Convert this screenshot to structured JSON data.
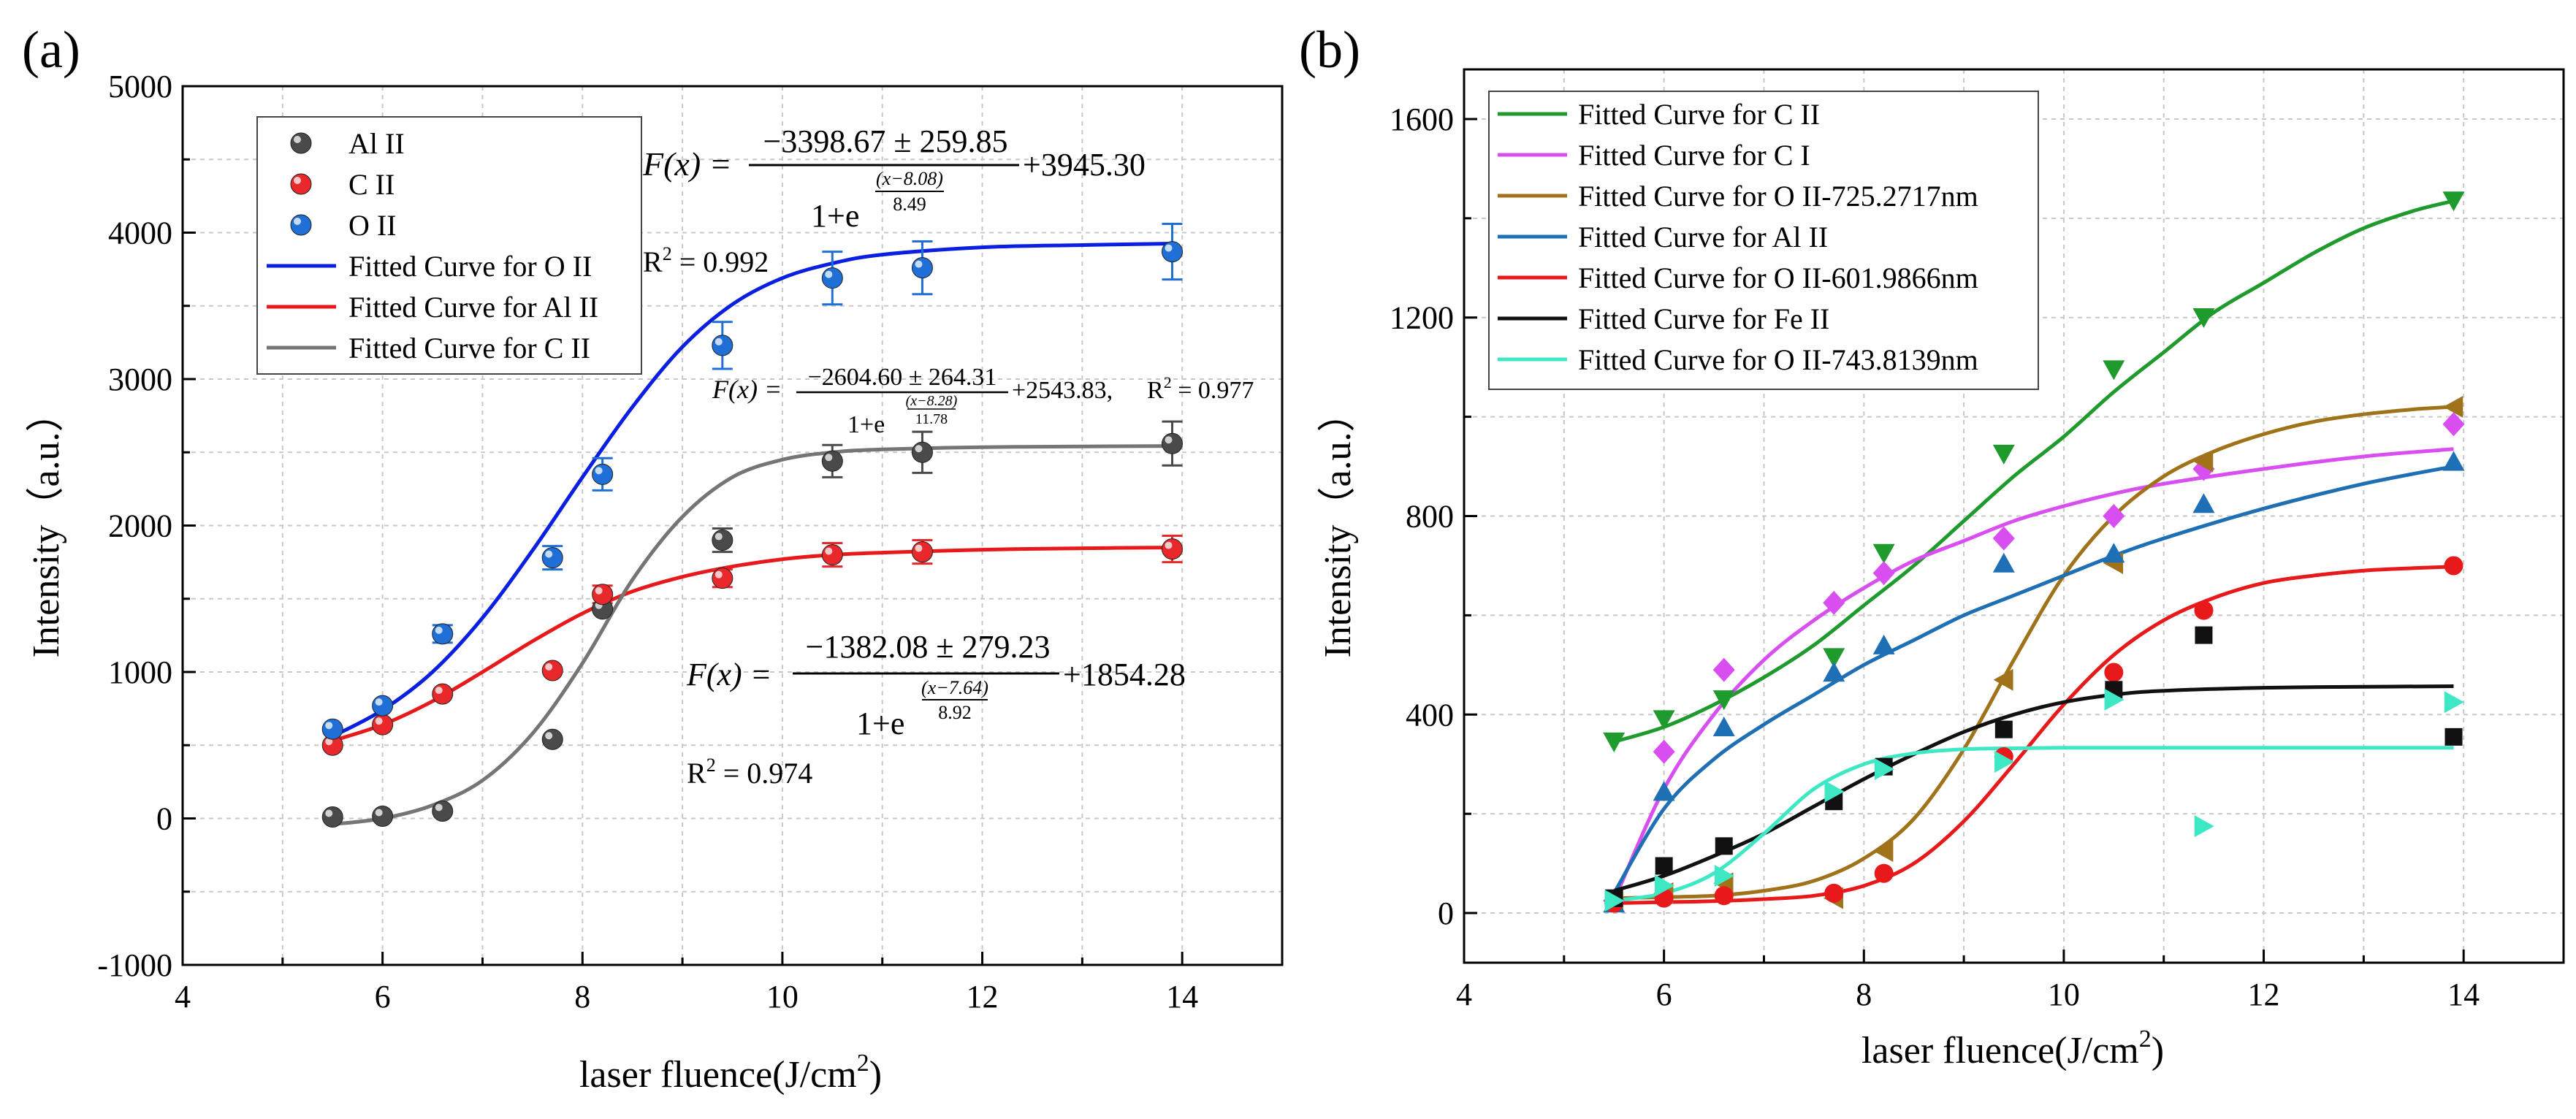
{
  "chart_data": [
    {
      "panel_label": "(a)",
      "type": "scatter",
      "xlabel": "laser fluence(J/cm",
      "xlabel_sup": "2",
      "xlabel_close": ")",
      "ylabel": "Intensity（a.u.）",
      "xlim": [
        4,
        15
      ],
      "ylim": [
        -1000,
        5000
      ],
      "x_ticks": [
        4,
        6,
        8,
        10,
        12,
        14
      ],
      "y_ticks": [
        -1000,
        0,
        1000,
        2000,
        3000,
        4000,
        5000
      ],
      "grid": true,
      "legend_position": "top-left",
      "series": [
        {
          "name": "Al II",
          "kind": "points",
          "color": "#4a4a4a",
          "marker": "sphere",
          "x": [
            5.5,
            6.0,
            6.6,
            7.7,
            8.2,
            9.4,
            10.5,
            11.4,
            13.9
          ],
          "y": [
            10,
            15,
            50,
            540,
            1430,
            1900,
            2440,
            2500,
            2560
          ],
          "err": [
            0,
            0,
            0,
            0,
            0,
            80,
            110,
            140,
            150
          ]
        },
        {
          "name": "C  II",
          "kind": "points",
          "color": "#e8282a",
          "marker": "sphere",
          "x": [
            5.5,
            6.0,
            6.6,
            7.7,
            8.2,
            9.4,
            10.5,
            11.4,
            13.9
          ],
          "y": [
            500,
            640,
            850,
            1010,
            1530,
            1640,
            1800,
            1820,
            1840
          ],
          "err": [
            0,
            0,
            0,
            0,
            60,
            60,
            80,
            80,
            90
          ]
        },
        {
          "name": "O II",
          "kind": "points",
          "color": "#1f6fd6",
          "marker": "sphere",
          "x": [
            5.5,
            6.0,
            6.6,
            7.7,
            8.2,
            9.4,
            10.5,
            11.4,
            13.9
          ],
          "y": [
            610,
            770,
            1260,
            1780,
            2350,
            3230,
            3690,
            3760,
            3870
          ],
          "err": [
            0,
            0,
            60,
            80,
            110,
            160,
            180,
            180,
            190
          ]
        },
        {
          "name": "Fitted Curve for O II",
          "kind": "fit",
          "color": "#0a1fe0",
          "x": [
            5.5,
            6.0,
            6.5,
            7.0,
            7.5,
            8.0,
            8.5,
            9.0,
            9.5,
            10.0,
            10.5,
            11.0,
            12.0,
            13.0,
            13.9
          ],
          "y": [
            560,
            740,
            1000,
            1370,
            1830,
            2330,
            2810,
            3220,
            3510,
            3690,
            3790,
            3850,
            3900,
            3915,
            3925
          ]
        },
        {
          "name": "Fitted Curve for Al II",
          "kind": "fit",
          "color": "#e8191b",
          "x": [
            5.5,
            6.0,
            6.5,
            7.0,
            7.5,
            8.0,
            8.5,
            9.0,
            9.5,
            10.0,
            10.5,
            11.0,
            12.0,
            13.0,
            13.9
          ],
          "y": [
            530,
            640,
            800,
            1000,
            1210,
            1400,
            1550,
            1650,
            1720,
            1770,
            1800,
            1815,
            1835,
            1845,
            1850
          ]
        },
        {
          "name": "Fitted Curve for C II",
          "kind": "fit",
          "color": "#757575",
          "x": [
            5.5,
            6.0,
            6.5,
            7.0,
            7.5,
            8.0,
            8.5,
            9.0,
            9.5,
            10.0,
            10.5,
            11.0,
            12.0,
            13.0,
            13.9
          ],
          "y": [
            -40,
            0,
            90,
            260,
            580,
            1060,
            1630,
            2060,
            2330,
            2450,
            2500,
            2520,
            2535,
            2540,
            2543
          ]
        }
      ],
      "annotations": [
        {
          "id": "eq1",
          "prefix": "F(x) =",
          "numerator": "−3398.67 ± 259.85",
          "denominator": "1+e",
          "exponent_top": "(x−8.08)",
          "exponent_bottom": "8.49",
          "suffix": "+3945.30"
        },
        {
          "id": "r2_1",
          "text": "R",
          "sup": "2",
          "rest": " = 0.992"
        },
        {
          "id": "eq2",
          "prefix": "F(x) =",
          "numerator": "−2604.60 ± 264.31",
          "denominator": "1+e",
          "exponent_top": "(x−8.28)",
          "exponent_bottom": "11.78",
          "suffix": "+2543.83,",
          "r2_prefix": "R",
          "r2_sup": "2",
          "r2_rest": " = 0.977"
        },
        {
          "id": "eq3",
          "prefix": "F(x) =",
          "numerator": "−1382.08 ± 279.23",
          "denominator": "1+e",
          "exponent_top": "(x−7.64)",
          "exponent_bottom": "8.92",
          "suffix": "+1854.28"
        },
        {
          "id": "r2_3",
          "text": "R",
          "sup": "2",
          "rest": " = 0.974"
        }
      ]
    },
    {
      "panel_label": "(b)",
      "type": "scatter",
      "xlabel": "laser fluence(J/cm",
      "xlabel_sup": "2",
      "xlabel_close": ")",
      "ylabel": "Intensity（a.u.）",
      "xlim": [
        4,
        15
      ],
      "ylim": [
        -100,
        1700
      ],
      "x_ticks": [
        4,
        6,
        8,
        10,
        12,
        14
      ],
      "y_ticks": [
        0,
        400,
        800,
        1200,
        1600
      ],
      "grid": true,
      "legend_position": "top-left",
      "series": [
        {
          "name": "Fitted Curve for C II",
          "color": "#1f9a2c",
          "marker": "triangle-down",
          "x": [
            5.5,
            6.0,
            6.6,
            7.7,
            8.2,
            9.4,
            10.5,
            11.4,
            13.9
          ],
          "y": [
            345,
            390,
            430,
            515,
            725,
            925,
            1095,
            1200,
            1435
          ],
          "fit_x": [
            5.5,
            6.0,
            6.5,
            7.0,
            7.5,
            8.0,
            8.5,
            9.0,
            9.5,
            10.0,
            10.5,
            11.0,
            11.5,
            12.0,
            12.5,
            13.0,
            13.5,
            13.9
          ],
          "fit_y": [
            345,
            375,
            420,
            475,
            540,
            620,
            700,
            790,
            880,
            960,
            1050,
            1130,
            1210,
            1270,
            1330,
            1380,
            1415,
            1435
          ]
        },
        {
          "name": "Fitted Curve for C I",
          "color": "#d84ef0",
          "marker": "diamond",
          "x": [
            5.5,
            6.0,
            6.6,
            7.7,
            8.2,
            9.4,
            10.5,
            11.4,
            13.9
          ],
          "y": [
            25,
            325,
            490,
            625,
            685,
            755,
            800,
            895,
            985
          ],
          "fit_x": [
            5.5,
            6.0,
            6.5,
            7.0,
            7.5,
            8.0,
            8.5,
            9.0,
            9.5,
            10.0,
            10.5,
            11.0,
            12.0,
            13.0,
            13.9
          ],
          "fit_y": [
            25,
            250,
            400,
            510,
            590,
            655,
            710,
            750,
            790,
            820,
            845,
            865,
            895,
            920,
            935
          ]
        },
        {
          "name": "Fitted Curve for O II-725.2717nm",
          "color": "#a0721a",
          "marker": "triangle-left",
          "x": [
            5.5,
            6.0,
            6.6,
            7.7,
            8.2,
            9.4,
            10.5,
            11.4,
            13.9
          ],
          "y": [
            25,
            40,
            60,
            30,
            125,
            470,
            705,
            910,
            1020
          ],
          "fit_x": [
            5.5,
            6.0,
            6.5,
            7.0,
            7.5,
            8.0,
            8.5,
            9.0,
            9.5,
            10.0,
            10.5,
            11.0,
            11.5,
            12.0,
            12.5,
            13.0,
            13.5,
            13.9
          ],
          "fit_y": [
            30,
            32,
            35,
            45,
            65,
            110,
            190,
            330,
            510,
            680,
            800,
            880,
            930,
            965,
            990,
            1005,
            1015,
            1020
          ]
        },
        {
          "name": "Fitted Curve for Al II",
          "color": "#1f6fb4",
          "marker": "triangle-up",
          "x": [
            5.5,
            6.0,
            6.6,
            7.7,
            8.2,
            9.4,
            10.5,
            11.4,
            13.9
          ],
          "y": [
            20,
            245,
            375,
            485,
            540,
            705,
            725,
            825,
            910
          ],
          "fit_x": [
            5.5,
            6.0,
            6.5,
            7.0,
            7.5,
            8.0,
            8.5,
            9.0,
            9.5,
            10.0,
            10.5,
            11.0,
            12.0,
            13.0,
            13.9
          ],
          "fit_y": [
            40,
            210,
            310,
            380,
            440,
            500,
            550,
            600,
            640,
            680,
            720,
            755,
            815,
            865,
            900
          ]
        },
        {
          "name": "Fitted Curve for O II-601.9866nm",
          "color": "#e8191b",
          "marker": "circle",
          "x": [
            5.5,
            6.0,
            6.6,
            7.7,
            8.2,
            9.4,
            10.5,
            11.4,
            13.9
          ],
          "y": [
            20,
            30,
            35,
            40,
            80,
            315,
            485,
            610,
            700
          ],
          "fit_x": [
            5.5,
            6.0,
            6.5,
            7.0,
            7.5,
            8.0,
            8.5,
            9.0,
            9.5,
            10.0,
            10.5,
            11.0,
            11.5,
            12.0,
            12.5,
            13.0,
            13.5,
            13.9
          ],
          "fit_y": [
            20,
            22,
            24,
            28,
            35,
            55,
            100,
            185,
            300,
            420,
            520,
            590,
            635,
            665,
            680,
            690,
            695,
            698
          ]
        },
        {
          "name": "Fitted Curve for Fe II",
          "color": "#111111",
          "marker": "square",
          "x": [
            5.5,
            6.0,
            6.6,
            7.7,
            8.2,
            9.4,
            10.5,
            11.4,
            13.9
          ],
          "y": [
            30,
            95,
            135,
            225,
            295,
            370,
            450,
            560,
            355
          ],
          "fit_x": [
            5.5,
            6.0,
            6.5,
            7.0,
            7.5,
            8.0,
            8.5,
            9.0,
            9.5,
            10.0,
            10.5,
            11.0,
            12.0,
            13.0,
            13.9
          ],
          "fit_y": [
            45,
            75,
            115,
            160,
            215,
            270,
            320,
            365,
            400,
            425,
            440,
            448,
            454,
            456,
            457
          ]
        },
        {
          "name": "Fitted Curve for O II-743.8139nm",
          "color": "#3ee8c4",
          "marker": "triangle-right",
          "x": [
            5.5,
            6.0,
            6.6,
            7.7,
            8.2,
            9.4,
            10.5,
            11.4,
            13.9
          ],
          "y": [
            25,
            55,
            75,
            245,
            290,
            305,
            430,
            175,
            425
          ],
          "fit_x": [
            5.5,
            6.0,
            6.5,
            7.0,
            7.5,
            8.0,
            8.5,
            9.0,
            9.5,
            10.0,
            11.0,
            12.0,
            13.0,
            13.9
          ],
          "fit_y": [
            25,
            40,
            80,
            160,
            250,
            300,
            322,
            330,
            332,
            333,
            333,
            333,
            333,
            333
          ]
        }
      ]
    }
  ]
}
